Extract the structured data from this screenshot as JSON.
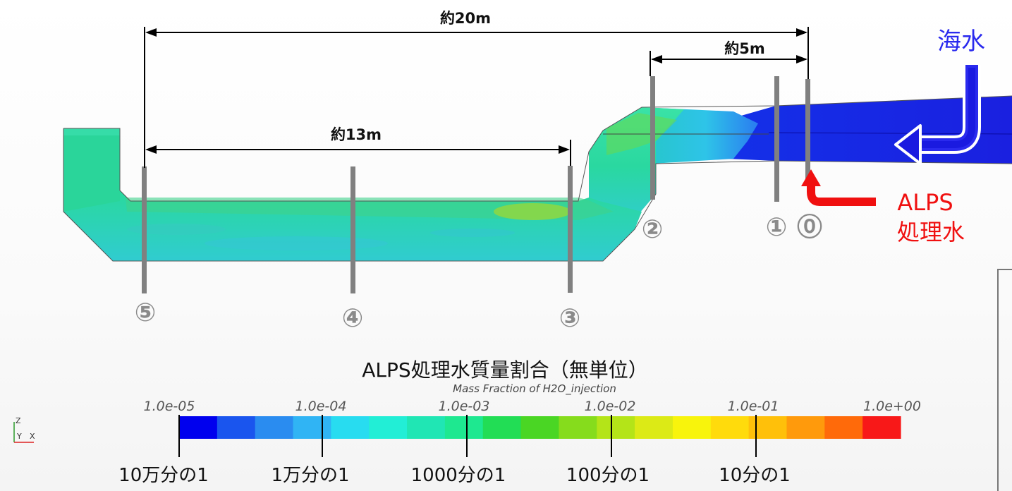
{
  "dimensions": {
    "overall": "約20m",
    "inlet_to_section2": "約5m",
    "section5_to_section3": "約13m"
  },
  "sections": [
    "⓪",
    "①",
    "②",
    "③",
    "④",
    "⑤"
  ],
  "labels": {
    "seawater": "海水",
    "alps_line1": "ALPS",
    "alps_line2": "処理水"
  },
  "legend": {
    "title": "ALPS処理水質量割合（無単位）",
    "subtitle": "Mass Fraction of H2O_injection",
    "tick_labels": [
      "1.0e-05",
      "1.0e-04",
      "1.0e-03",
      "1.0e-02",
      "1.0e-01",
      "1.0e+00"
    ],
    "ratio_labels": [
      "10万分の1",
      "1万分の1",
      "1000分の1",
      "100分の1",
      "10分の1"
    ],
    "colors": [
      "#0000ee",
      "#1a55ee",
      "#2a8cf0",
      "#30b4f4",
      "#28dcf0",
      "#22eed6",
      "#20e6b4",
      "#1ee890",
      "#22dd55",
      "#4ad624",
      "#86dc1c",
      "#b4e418",
      "#dcea16",
      "#f8f40c",
      "#ffdb0c",
      "#ffc00a",
      "#ff9a0c",
      "#ff6a0a",
      "#f81818"
    ]
  },
  "axis_triad": {
    "z": "Z",
    "y": "Y",
    "x": "X"
  },
  "colors": {
    "seawater_blue": "#1a24e6",
    "pipe_green": "#2ad59a",
    "alps_red": "#f01010",
    "section_gray": "#808080"
  }
}
